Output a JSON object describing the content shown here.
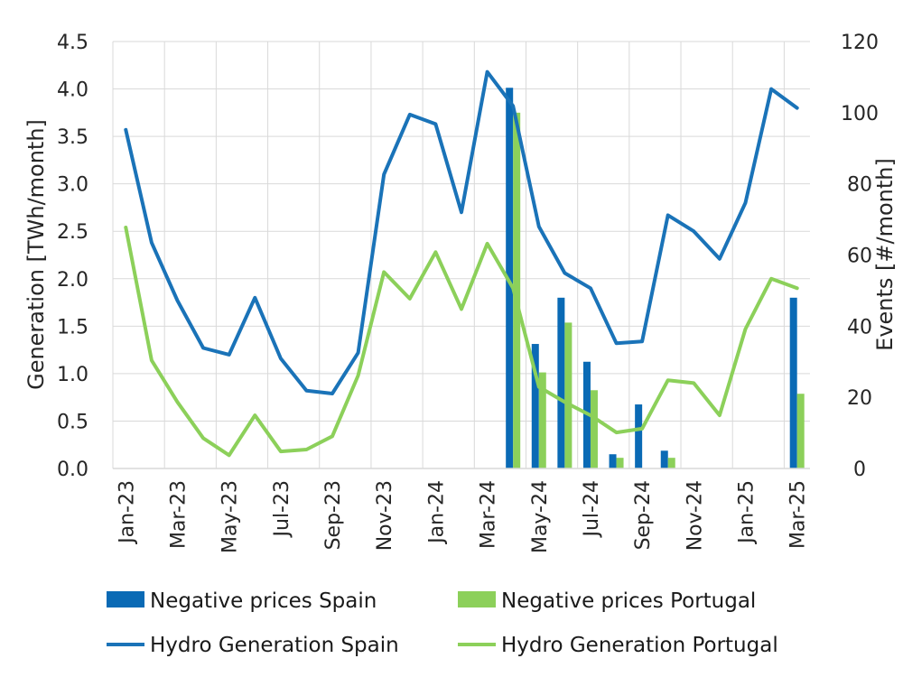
{
  "chart_data": {
    "type": "bar+line",
    "title": "",
    "categories": [
      "Jan-23",
      "Feb-23",
      "Mar-23",
      "Apr-23",
      "May-23",
      "Jun-23",
      "Jul-23",
      "Aug-23",
      "Sep-23",
      "Oct-23",
      "Nov-23",
      "Dec-23",
      "Jan-24",
      "Feb-24",
      "Mar-24",
      "Apr-24",
      "May-24",
      "Jun-24",
      "Jul-24",
      "Aug-24",
      "Sep-24",
      "Oct-24",
      "Nov-24",
      "Dec-24",
      "Jan-25",
      "Feb-25",
      "Mar-25"
    ],
    "tick_labels": [
      "Jan-23",
      "Mar-23",
      "May-23",
      "Jul-23",
      "Sep-23",
      "Nov-23",
      "Jan-24",
      "Mar-24",
      "May-24",
      "Jul-24",
      "Sep-24",
      "Nov-24",
      "Jan-25",
      "Mar-25"
    ],
    "ylabel": "Generation [TWh/month]",
    "y2label": "Events [#/month]",
    "ylim": [
      0,
      4.5
    ],
    "yticks": [
      "0.0",
      "0.5",
      "1.0",
      "1.5",
      "2.0",
      "2.5",
      "3.0",
      "3.5",
      "4.0",
      "4.5"
    ],
    "y2lim": [
      0,
      120
    ],
    "y2ticks": [
      "0",
      "20",
      "40",
      "60",
      "80",
      "100",
      "120"
    ],
    "grid": true,
    "legend_position": "bottom",
    "series": [
      {
        "name": "Negative prices Spain",
        "kind": "bar",
        "axis": "right",
        "color": "#0a6ab5",
        "values": [
          0,
          0,
          0,
          0,
          0,
          0,
          0,
          0,
          0,
          0,
          0,
          0,
          0,
          0,
          0,
          107,
          35,
          48,
          30,
          4,
          18,
          5,
          0,
          0,
          0,
          0,
          48
        ]
      },
      {
        "name": "Negative prices Portugal",
        "kind": "bar",
        "axis": "right",
        "color": "#8cd05a",
        "values": [
          0,
          0,
          0,
          0,
          0,
          0,
          0,
          0,
          0,
          0,
          0,
          0,
          0,
          0,
          0,
          100,
          27,
          41,
          22,
          3,
          0,
          3,
          0,
          0,
          0,
          0,
          21
        ]
      },
      {
        "name": "Hydro Generation Spain",
        "kind": "line",
        "axis": "left",
        "color": "#1a73b8",
        "values": [
          3.57,
          2.38,
          1.77,
          1.27,
          1.2,
          1.8,
          1.16,
          0.82,
          0.79,
          1.22,
          3.1,
          3.73,
          3.63,
          2.7,
          4.18,
          3.82,
          2.55,
          2.06,
          1.9,
          1.32,
          1.34,
          2.67,
          2.5,
          2.21,
          2.8,
          4.0,
          3.8
        ]
      },
      {
        "name": "Hydro Generation Portugal",
        "kind": "line",
        "axis": "left",
        "color": "#8cd05a",
        "values": [
          2.54,
          1.14,
          0.7,
          0.32,
          0.14,
          0.56,
          0.18,
          0.2,
          0.34,
          0.98,
          2.07,
          1.79,
          2.28,
          1.68,
          2.37,
          1.9,
          0.86,
          0.7,
          0.56,
          0.38,
          0.42,
          0.93,
          0.9,
          0.56,
          1.47,
          2.0,
          1.9
        ]
      }
    ]
  }
}
